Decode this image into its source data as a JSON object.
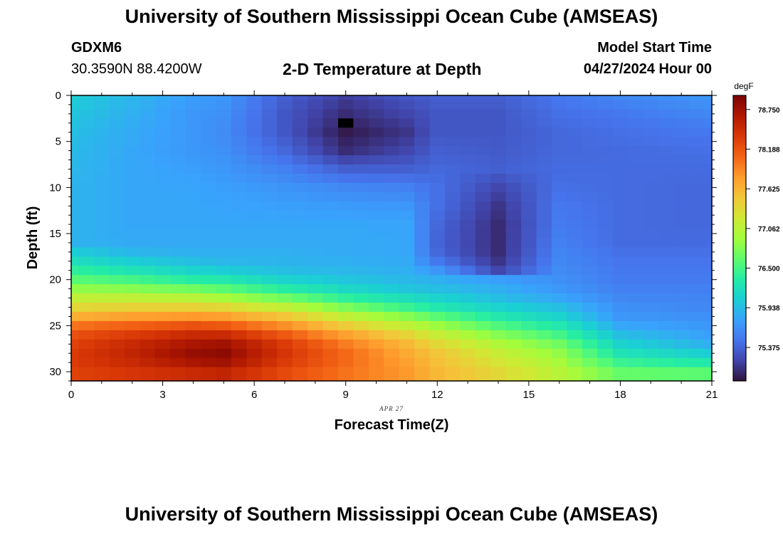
{
  "header": {
    "title": "University of Southern Mississippi Ocean Cube (AMSEAS)",
    "station": "GDXM6",
    "coordinates": "30.3590N  88.4200W",
    "subtitle": "2-D Temperature at Depth",
    "model_start_label": "Model Start Time",
    "model_start_value": "04/27/2024 Hour 00"
  },
  "footer": {
    "title": "University of Southern Mississippi Ocean Cube (AMSEAS)"
  },
  "chart_data": {
    "type": "heatmap",
    "title": "2-D Temperature at Depth",
    "xlabel": "Forecast Time(Z)",
    "ylabel": "Depth (ft)",
    "date_annotation": "APR 27",
    "xlim": [
      0,
      21
    ],
    "ylim": [
      0,
      31
    ],
    "x_ticks": [
      0,
      3,
      6,
      9,
      12,
      15,
      18,
      21
    ],
    "y_ticks": [
      0,
      5,
      10,
      15,
      20,
      25,
      30
    ],
    "colorbar": {
      "unit": "degF",
      "range": [
        74.9,
        78.95
      ],
      "tick_values": [
        78.75,
        78.188,
        77.625,
        77.062,
        76.5,
        75.938,
        75.375
      ],
      "tick_labels": [
        "78.750",
        "78.188",
        "77.625",
        "77.062",
        "76.500",
        "75.938",
        "75.375"
      ],
      "colors": [
        "#30123b",
        "#4145ab",
        "#4675ed",
        "#39a2fc",
        "#1bcfd4",
        "#24eca6",
        "#61fc6c",
        "#a4fc3b",
        "#d1e834",
        "#f3c63a",
        "#fe9b2d",
        "#f36315",
        "#d93806",
        "#b11901",
        "#7a0403"
      ]
    },
    "grid": {
      "description": "Temperature (degF) by forecast hour (rows 0..21 at 1-hour steps) and depth (columns 0..30 ft at 1-ft steps), generated from the keyframe profiles below",
      "profile_depths": [
        0,
        2,
        4,
        6,
        8,
        10,
        12,
        14,
        16,
        17,
        18,
        19,
        20,
        21,
        22,
        23,
        24,
        25,
        26,
        27,
        28,
        29,
        30,
        31
      ],
      "keyframes": [
        {
          "hour": 0,
          "temps": [
            76.05,
            76.0,
            75.95,
            75.92,
            75.9,
            75.88,
            75.88,
            75.88,
            75.88,
            76.05,
            76.2,
            76.4,
            76.6,
            76.85,
            77.1,
            77.35,
            77.65,
            78.0,
            78.2,
            78.3,
            78.35,
            78.35,
            78.3,
            78.3
          ]
        },
        {
          "hour": 2,
          "temps": [
            75.9,
            75.85,
            75.82,
            75.8,
            75.8,
            75.8,
            75.8,
            75.8,
            75.82,
            75.9,
            76.05,
            76.25,
            76.5,
            76.8,
            77.1,
            77.4,
            77.75,
            78.1,
            78.35,
            78.5,
            78.55,
            78.5,
            78.4,
            78.35
          ]
        },
        {
          "hour": 4,
          "temps": [
            75.75,
            75.7,
            75.7,
            75.7,
            75.75,
            75.78,
            75.8,
            75.8,
            75.82,
            75.85,
            75.95,
            76.1,
            76.35,
            76.7,
            77.05,
            77.4,
            77.8,
            78.2,
            78.5,
            78.7,
            78.8,
            78.7,
            78.5,
            78.35
          ]
        },
        {
          "hour": 5,
          "temps": [
            75.7,
            75.65,
            75.62,
            75.65,
            75.7,
            75.75,
            75.78,
            75.8,
            75.82,
            75.85,
            75.9,
            76.05,
            76.3,
            76.6,
            76.95,
            77.35,
            77.75,
            78.15,
            78.5,
            78.75,
            78.85,
            78.75,
            78.55,
            78.4
          ]
        },
        {
          "hour": 7,
          "temps": [
            75.35,
            75.3,
            75.3,
            75.4,
            75.55,
            75.68,
            75.75,
            75.8,
            75.82,
            75.85,
            75.88,
            75.95,
            76.1,
            76.35,
            76.7,
            77.1,
            77.5,
            77.85,
            78.15,
            78.35,
            78.4,
            78.35,
            78.25,
            78.2
          ]
        },
        {
          "hour": 9,
          "temps": [
            75.15,
            75.05,
            74.95,
            75.05,
            75.35,
            75.6,
            75.72,
            75.8,
            75.82,
            75.82,
            75.85,
            75.9,
            76.0,
            76.15,
            76.4,
            76.75,
            77.1,
            77.45,
            77.75,
            77.95,
            78.05,
            78.05,
            78.0,
            78.0
          ]
        },
        {
          "hour": 11,
          "temps": [
            75.3,
            75.2,
            75.1,
            75.2,
            75.35,
            75.55,
            75.7,
            75.78,
            75.8,
            75.8,
            75.82,
            75.85,
            75.9,
            76.0,
            76.2,
            76.45,
            76.8,
            77.1,
            77.4,
            77.6,
            77.7,
            77.75,
            77.8,
            77.8
          ]
        },
        {
          "hour": 12,
          "temps": [
            75.35,
            75.3,
            75.3,
            75.35,
            75.4,
            75.45,
            75.45,
            75.4,
            75.38,
            75.4,
            75.5,
            75.7,
            75.85,
            75.95,
            76.1,
            76.3,
            76.6,
            76.9,
            77.15,
            77.35,
            77.5,
            77.55,
            77.6,
            77.6
          ]
        },
        {
          "hour": 14,
          "temps": [
            75.35,
            75.3,
            75.3,
            75.32,
            75.35,
            75.2,
            75.1,
            75.05,
            75.05,
            75.05,
            75.1,
            75.2,
            75.75,
            75.85,
            75.95,
            76.1,
            76.3,
            76.55,
            76.8,
            77.0,
            77.15,
            77.25,
            77.35,
            77.35
          ]
        },
        {
          "hour": 16,
          "temps": [
            75.5,
            75.45,
            75.4,
            75.4,
            75.42,
            75.45,
            75.5,
            75.52,
            75.55,
            75.58,
            75.6,
            75.62,
            75.65,
            75.7,
            75.8,
            75.95,
            76.1,
            76.3,
            76.5,
            76.7,
            76.85,
            76.95,
            77.05,
            77.1
          ]
        },
        {
          "hour": 18,
          "temps": [
            75.6,
            75.5,
            75.45,
            75.42,
            75.42,
            75.42,
            75.42,
            75.42,
            75.42,
            75.45,
            75.48,
            75.5,
            75.52,
            75.55,
            75.6,
            75.65,
            75.7,
            75.8,
            75.95,
            76.1,
            76.25,
            76.45,
            76.65,
            76.85
          ]
        },
        {
          "hour": 21,
          "temps": [
            75.7,
            75.6,
            75.5,
            75.45,
            75.42,
            75.4,
            75.4,
            75.4,
            75.42,
            75.45,
            75.48,
            75.5,
            75.52,
            75.55,
            75.58,
            75.6,
            75.65,
            75.7,
            75.75,
            75.85,
            76.05,
            76.3,
            76.6,
            77.2
          ]
        }
      ],
      "marked_cell": {
        "hour": 9,
        "depth": 3,
        "color": "#000000"
      }
    }
  }
}
